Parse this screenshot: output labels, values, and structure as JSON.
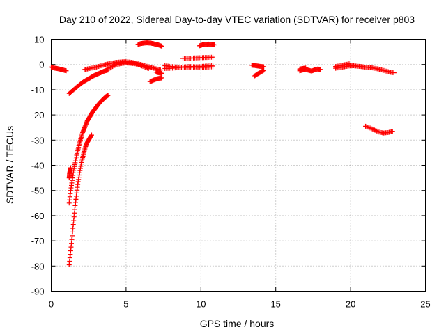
{
  "chart_data": {
    "type": "scatter",
    "title": "Day 210 of 2022, Sidereal Day-to-day VTEC variation (SDTVAR) for receiver p803",
    "xlabel": "GPS time / hours",
    "ylabel": "SDTVAR / TECUs",
    "xlim": [
      0,
      25
    ],
    "ylim": [
      -90,
      10
    ],
    "xticks": [
      0,
      5,
      10,
      15,
      20,
      25
    ],
    "yticks": [
      -90,
      -80,
      -70,
      -60,
      -50,
      -40,
      -30,
      -20,
      -10,
      0,
      10
    ],
    "grid": true,
    "marker": "plus",
    "color": "#ff0000",
    "series": [
      {
        "x": [
          0.0,
          0.2,
          0.4,
          0.6,
          0.8,
          1.0
        ],
        "y": [
          -1.0,
          -1.4,
          -1.6,
          -1.9,
          -2.2,
          -2.5
        ]
      },
      {
        "x": [
          1.2,
          1.4,
          1.6,
          1.8,
          2.0,
          2.2,
          2.4,
          2.6,
          2.8,
          3.0,
          3.2,
          3.4,
          3.6,
          3.8
        ],
        "y": [
          -11.5,
          -10.5,
          -9.5,
          -8.5,
          -7.5,
          -6.7,
          -6.0,
          -5.3,
          -4.6,
          -4.0,
          -3.5,
          -3.0,
          -2.5,
          -2.2
        ]
      },
      {
        "x": [
          1.2,
          1.3,
          1.4,
          1.5,
          1.6,
          1.7,
          1.8,
          1.9,
          2.0,
          2.1,
          2.2,
          2.3,
          2.4,
          2.5,
          2.6,
          2.7,
          2.8,
          2.9,
          3.0,
          3.1,
          3.2,
          3.3,
          3.4,
          3.5,
          3.6,
          3.7,
          3.8
        ],
        "y": [
          -55,
          -50,
          -46,
          -42,
          -39,
          -36,
          -33.5,
          -31,
          -29,
          -27,
          -25.5,
          -24,
          -22.5,
          -21.5,
          -20.5,
          -19.5,
          -18.5,
          -17.8,
          -17,
          -16.2,
          -15.5,
          -14.8,
          -14.2,
          -13.6,
          -13,
          -12.6,
          -12.2
        ]
      },
      {
        "x": [
          1.2,
          1.3,
          1.4,
          1.5,
          1.6,
          1.7,
          1.8,
          1.9,
          2.0,
          2.1,
          2.2,
          2.3,
          2.4,
          2.5,
          2.6,
          2.7
        ],
        "y": [
          -79.5,
          -74,
          -68,
          -62,
          -56,
          -51,
          -46.5,
          -43,
          -39.5,
          -37,
          -34.5,
          -32.5,
          -31,
          -30,
          -29,
          -28
        ]
      },
      {
        "x": [
          1.2,
          1.22,
          1.25,
          1.28,
          1.3
        ],
        "y": [
          -45,
          -43.5,
          -42.5,
          -41.5,
          -41
        ]
      },
      {
        "x": [
          2.2,
          2.5,
          2.8,
          3.1,
          3.4,
          3.7,
          4.0,
          4.3,
          4.6,
          4.9,
          5.2,
          5.5,
          5.8,
          6.1,
          6.4,
          6.7,
          7.0,
          7.3
        ],
        "y": [
          -2.0,
          -1.7,
          -1.3,
          -0.9,
          -0.4,
          0.1,
          0.5,
          0.8,
          1.0,
          1.1,
          1.0,
          0.7,
          0.3,
          -0.2,
          -0.7,
          -1.2,
          -1.7,
          -2.2
        ]
      },
      {
        "x": [
          3.8,
          4.1,
          4.4,
          4.7,
          5.0,
          5.3,
          5.6,
          5.9,
          6.2,
          6.5
        ],
        "y": [
          -1.5,
          -0.8,
          0.0,
          0.4,
          0.6,
          0.5,
          0.3,
          -0.2,
          -0.9,
          -1.6
        ]
      },
      {
        "x": [
          5.8,
          6.0,
          6.2,
          6.4,
          6.6,
          6.8,
          7.0,
          7.2,
          7.4
        ],
        "y": [
          8.0,
          8.3,
          8.5,
          8.6,
          8.5,
          8.3,
          8.0,
          7.7,
          7.2
        ]
      },
      {
        "x": [
          6.6,
          6.8,
          7.0,
          7.2,
          7.4
        ],
        "y": [
          -6.8,
          -6.3,
          -5.8,
          -5.5,
          -5.3
        ]
      },
      {
        "x": [
          7.0,
          7.2,
          7.4
        ],
        "y": [
          -3.0,
          -3.3,
          -3.5
        ]
      },
      {
        "x": [
          7.6,
          8.0,
          8.4,
          8.8,
          9.2,
          9.6,
          10.0,
          10.4,
          10.8
        ],
        "y": [
          -0.5,
          -0.8,
          -1.0,
          -1.1,
          -1.2,
          -1.0,
          -0.8,
          -0.6,
          -0.4
        ]
      },
      {
        "x": [
          7.6,
          8.0,
          8.4,
          8.8,
          9.2,
          9.6,
          10.0,
          10.4,
          10.8
        ],
        "y": [
          -1.6,
          -1.5,
          -1.3,
          -1.0,
          -0.8,
          -0.9,
          -1.2,
          -1.1,
          -0.9
        ]
      },
      {
        "x": [
          8.8,
          9.2,
          9.6,
          10.0,
          10.4,
          10.8
        ],
        "y": [
          2.4,
          2.5,
          2.6,
          2.7,
          2.8,
          2.9
        ]
      },
      {
        "x": [
          9.9,
          10.1,
          10.3,
          10.5,
          10.7,
          10.9
        ],
        "y": [
          7.4,
          7.8,
          8.0,
          8.1,
          8.0,
          7.8
        ]
      },
      {
        "x": [
          13.4,
          13.6,
          13.8,
          14.0,
          14.2
        ],
        "y": [
          -0.3,
          -0.4,
          -0.6,
          -0.8,
          -0.9
        ]
      },
      {
        "x": [
          13.6,
          13.8,
          14.0,
          14.2
        ],
        "y": [
          -4.5,
          -3.7,
          -3.0,
          -2.3
        ]
      },
      {
        "x": [
          16.6,
          16.8,
          17.0,
          17.2,
          17.4,
          17.6,
          17.8,
          18.0
        ],
        "y": [
          -2.5,
          -2.2,
          -2.0,
          -2.3,
          -2.6,
          -2.1,
          -1.8,
          -2.0
        ]
      },
      {
        "x": [
          16.6,
          16.8,
          17.0
        ],
        "y": [
          -1.8,
          -1.6,
          -1.4
        ]
      },
      {
        "x": [
          19.0,
          19.3,
          19.6,
          19.9,
          20.2,
          20.5,
          20.8,
          21.1,
          21.4,
          21.7,
          22.0,
          22.3,
          22.6,
          22.9
        ],
        "y": [
          -1.5,
          -1.2,
          -0.9,
          -0.6,
          -0.5,
          -0.7,
          -0.9,
          -1.1,
          -1.3,
          -1.6,
          -2.0,
          -2.5,
          -3.0,
          -3.3
        ]
      },
      {
        "x": [
          19.0,
          19.3,
          19.6,
          19.9
        ],
        "y": [
          -0.8,
          -0.5,
          -0.1,
          0.3
        ]
      },
      {
        "x": [
          21.0,
          21.3,
          21.6,
          21.9,
          22.2,
          22.5,
          22.8
        ],
        "y": [
          -24.5,
          -25.2,
          -26.0,
          -26.8,
          -27.2,
          -27.0,
          -26.5
        ]
      }
    ]
  }
}
